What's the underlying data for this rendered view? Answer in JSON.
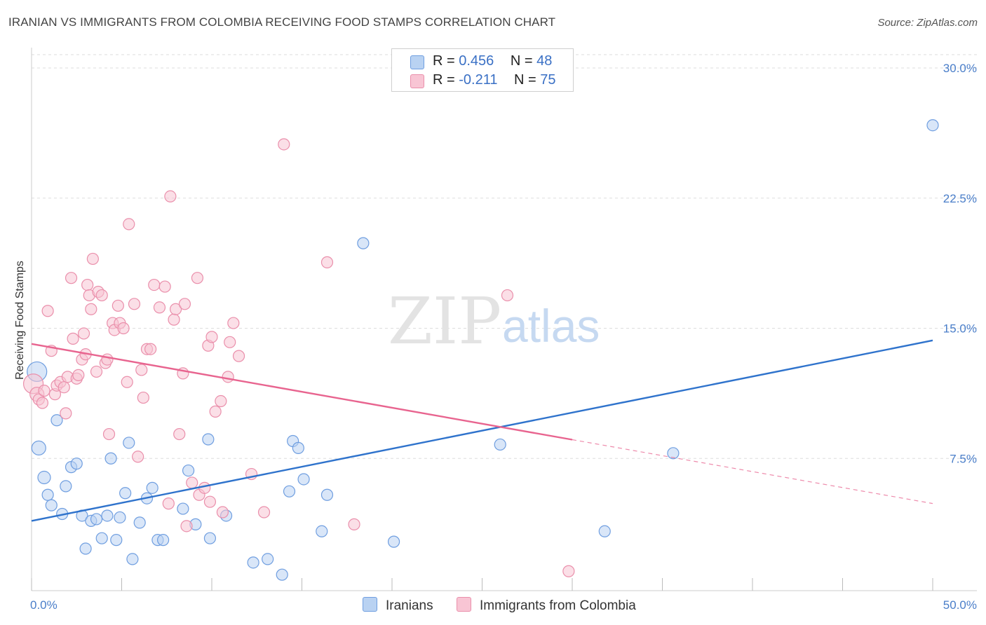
{
  "title": "IRANIAN VS IMMIGRANTS FROM COLOMBIA RECEIVING FOOD STAMPS CORRELATION CHART",
  "source": "Source: ZipAtlas.com",
  "watermark": {
    "zip": "ZIP",
    "atlas": "atlas"
  },
  "colors": {
    "blue_fill": "#b9d2f2",
    "blue_stroke": "#6f9ee0",
    "blue_line": "#2f73cc",
    "pink_fill": "#f8c5d4",
    "pink_stroke": "#ea8fab",
    "pink_line": "#e8648f",
    "grid": "#dddddd",
    "axis": "#cccccc"
  },
  "legend": {
    "rows": [
      {
        "r_label": "R = ",
        "r_value": "0.456",
        "n_label": "N = ",
        "n_value": "48",
        "series": "blue"
      },
      {
        "r_label": "R = ",
        "r_value": "-0.211",
        "n_label": "N = ",
        "n_value": "75",
        "series": "pink"
      }
    ]
  },
  "bottom_legend": [
    "Iranians",
    "Immigrants from Colombia"
  ],
  "chart_data": {
    "type": "scatter",
    "title": "IRANIAN VS IMMIGRANTS FROM COLOMBIA RECEIVING FOOD STAMPS CORRELATION CHART",
    "xlabel": "",
    "ylabel": "Receiving Food Stamps",
    "xlim": [
      0,
      50
    ],
    "ylim": [
      0,
      30
    ],
    "x_tick_labels": [
      "0.0%",
      "50.0%"
    ],
    "y_ticks": [
      7.5,
      15.0,
      22.5,
      30.0
    ],
    "y_tick_labels": [
      "7.5%",
      "15.0%",
      "22.5%",
      "30.0%"
    ],
    "series": [
      {
        "name": "Iranians",
        "color": "blue",
        "r": 0.456,
        "n": 48,
        "trend": {
          "x0": 0,
          "y0": 3.9,
          "x1": 50,
          "y1": 14.3,
          "dash_from": null
        },
        "points": [
          [
            0.3,
            12.5,
            14
          ],
          [
            0.4,
            8.1,
            10
          ],
          [
            0.7,
            6.4,
            9
          ],
          [
            0.9,
            5.4,
            8
          ],
          [
            1.1,
            4.8,
            8
          ],
          [
            1.4,
            9.7,
            8
          ],
          [
            1.7,
            4.3,
            8
          ],
          [
            1.9,
            5.9,
            8
          ],
          [
            2.2,
            7.0,
            8
          ],
          [
            2.5,
            7.2,
            8
          ],
          [
            2.8,
            4.2,
            8
          ],
          [
            3.0,
            2.3,
            8
          ],
          [
            3.3,
            3.9,
            8
          ],
          [
            3.6,
            4.0,
            8
          ],
          [
            3.9,
            2.9,
            8
          ],
          [
            4.2,
            4.2,
            8
          ],
          [
            4.4,
            7.5,
            8
          ],
          [
            4.7,
            2.8,
            8
          ],
          [
            4.9,
            4.1,
            8
          ],
          [
            5.2,
            5.5,
            8
          ],
          [
            5.4,
            8.4,
            8
          ],
          [
            5.6,
            1.7,
            8
          ],
          [
            6.0,
            3.8,
            8
          ],
          [
            6.4,
            5.2,
            8
          ],
          [
            6.7,
            5.8,
            8
          ],
          [
            7.0,
            2.8,
            8
          ],
          [
            7.3,
            2.8,
            8
          ],
          [
            8.4,
            4.6,
            8
          ],
          [
            8.7,
            6.8,
            8
          ],
          [
            9.1,
            3.7,
            8
          ],
          [
            9.8,
            8.6,
            8
          ],
          [
            9.9,
            2.9,
            8
          ],
          [
            10.8,
            4.2,
            8
          ],
          [
            12.3,
            1.5,
            8
          ],
          [
            13.1,
            1.7,
            8
          ],
          [
            13.9,
            0.8,
            8
          ],
          [
            14.3,
            5.6,
            8
          ],
          [
            14.5,
            8.5,
            8
          ],
          [
            14.8,
            8.1,
            8
          ],
          [
            15.1,
            6.3,
            8
          ],
          [
            16.1,
            3.3,
            8
          ],
          [
            16.4,
            5.4,
            8
          ],
          [
            18.4,
            19.9,
            8
          ],
          [
            20.1,
            2.7,
            8
          ],
          [
            26.0,
            8.3,
            8
          ],
          [
            31.8,
            3.3,
            8
          ],
          [
            35.6,
            7.8,
            8
          ],
          [
            50.0,
            26.7,
            8
          ]
        ]
      },
      {
        "name": "Immigrants from Colombia",
        "color": "pink",
        "r": -0.211,
        "n": 75,
        "trend": {
          "x0": 0,
          "y0": 14.1,
          "x1": 50,
          "y1": 4.9,
          "dash_from": 30.0
        },
        "points": [
          [
            0.1,
            11.8,
            14
          ],
          [
            0.3,
            11.2,
            10
          ],
          [
            0.4,
            10.9,
            8
          ],
          [
            0.6,
            10.7,
            8
          ],
          [
            0.7,
            11.4,
            8
          ],
          [
            0.9,
            16.0,
            8
          ],
          [
            1.1,
            13.7,
            8
          ],
          [
            1.3,
            11.2,
            8
          ],
          [
            1.4,
            11.7,
            8
          ],
          [
            1.6,
            11.9,
            8
          ],
          [
            1.8,
            11.6,
            8
          ],
          [
            1.9,
            10.1,
            8
          ],
          [
            2.0,
            12.2,
            8
          ],
          [
            2.2,
            17.9,
            8
          ],
          [
            2.3,
            14.4,
            8
          ],
          [
            2.5,
            12.1,
            8
          ],
          [
            2.6,
            12.3,
            8
          ],
          [
            2.8,
            13.2,
            8
          ],
          [
            2.9,
            14.7,
            8
          ],
          [
            3.0,
            13.5,
            8
          ],
          [
            3.1,
            17.5,
            8
          ],
          [
            3.2,
            16.9,
            8
          ],
          [
            3.3,
            16.1,
            8
          ],
          [
            3.4,
            19.0,
            8
          ],
          [
            3.6,
            12.5,
            8
          ],
          [
            3.7,
            17.1,
            8
          ],
          [
            3.9,
            16.9,
            8
          ],
          [
            4.1,
            13.0,
            8
          ],
          [
            4.2,
            13.2,
            8
          ],
          [
            4.3,
            8.9,
            8
          ],
          [
            4.5,
            15.3,
            8
          ],
          [
            4.6,
            14.9,
            8
          ],
          [
            4.8,
            16.3,
            8
          ],
          [
            4.9,
            15.3,
            8
          ],
          [
            5.1,
            15.0,
            8
          ],
          [
            5.3,
            11.9,
            8
          ],
          [
            5.4,
            21.0,
            8
          ],
          [
            5.7,
            16.4,
            8
          ],
          [
            5.9,
            7.6,
            8
          ],
          [
            6.1,
            12.6,
            8
          ],
          [
            6.2,
            11.0,
            8
          ],
          [
            6.4,
            13.8,
            8
          ],
          [
            6.6,
            13.8,
            8
          ],
          [
            6.8,
            17.5,
            8
          ],
          [
            7.1,
            16.2,
            8
          ],
          [
            7.4,
            17.4,
            8
          ],
          [
            7.6,
            4.9,
            8
          ],
          [
            7.7,
            22.6,
            8
          ],
          [
            7.9,
            15.5,
            8
          ],
          [
            8.0,
            16.1,
            8
          ],
          [
            8.2,
            8.9,
            8
          ],
          [
            8.4,
            12.4,
            8
          ],
          [
            8.5,
            16.4,
            8
          ],
          [
            8.6,
            3.6,
            8
          ],
          [
            8.9,
            6.1,
            8
          ],
          [
            9.2,
            17.9,
            8
          ],
          [
            9.3,
            5.4,
            8
          ],
          [
            9.6,
            5.8,
            8
          ],
          [
            9.8,
            14.0,
            8
          ],
          [
            9.9,
            5.0,
            8
          ],
          [
            10.0,
            14.5,
            8
          ],
          [
            10.2,
            10.2,
            8
          ],
          [
            10.5,
            10.8,
            8
          ],
          [
            10.6,
            4.4,
            8
          ],
          [
            10.9,
            12.2,
            8
          ],
          [
            11.0,
            14.2,
            8
          ],
          [
            11.2,
            15.3,
            8
          ],
          [
            11.5,
            13.4,
            8
          ],
          [
            12.2,
            6.6,
            8
          ],
          [
            12.9,
            4.4,
            8
          ],
          [
            14.0,
            25.6,
            8
          ],
          [
            16.4,
            18.8,
            8
          ],
          [
            17.9,
            3.7,
            8
          ],
          [
            26.4,
            16.9,
            8
          ],
          [
            29.8,
            1.0,
            8
          ]
        ]
      }
    ]
  }
}
